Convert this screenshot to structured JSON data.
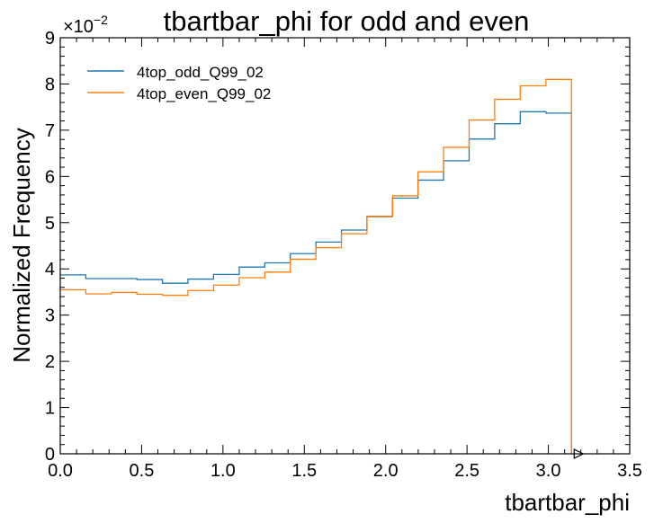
{
  "chart_data": {
    "type": "line",
    "drawstyle": "steps",
    "title": "tbartbar_phi for odd and even",
    "xlabel": "tbartbar_phi",
    "ylabel": "Normalized Frequency",
    "y_scale_label": "×10",
    "y_scale_exponent": "−2",
    "xlim": [
      0.0,
      3.5
    ],
    "ylim": [
      0,
      9
    ],
    "x_ticks": [
      "0.0",
      "0.5",
      "1.0",
      "1.5",
      "2.0",
      "2.5",
      "3.0",
      "3.5"
    ],
    "x_tick_values": [
      0.0,
      0.5,
      1.0,
      1.5,
      2.0,
      2.5,
      3.0,
      3.5
    ],
    "y_ticks": [
      "0",
      "1",
      "2",
      "3",
      "4",
      "5",
      "6",
      "7",
      "8",
      "9"
    ],
    "y_tick_values": [
      0,
      1,
      2,
      3,
      4,
      5,
      6,
      7,
      8,
      9
    ],
    "grid": false,
    "legend_position": "top-left",
    "bin_edges": [
      0.0,
      0.157,
      0.314,
      0.471,
      0.628,
      0.785,
      0.942,
      1.1,
      1.257,
      1.414,
      1.571,
      1.728,
      1.885,
      2.042,
      2.199,
      2.356,
      2.513,
      2.67,
      2.827,
      2.985,
      3.142
    ],
    "series": [
      {
        "name": "4top_odd_Q99_02",
        "color": "#1f77b4",
        "values": [
          3.87,
          3.79,
          3.79,
          3.77,
          3.69,
          3.78,
          3.88,
          4.04,
          4.13,
          4.33,
          4.58,
          4.84,
          5.13,
          5.53,
          5.92,
          6.34,
          6.81,
          7.14,
          7.4,
          7.37
        ]
      },
      {
        "name": "4top_even_Q99_02",
        "color": "#ff7f0e",
        "values": [
          3.55,
          3.46,
          3.49,
          3.45,
          3.43,
          3.53,
          3.65,
          3.81,
          3.93,
          4.21,
          4.46,
          4.76,
          5.14,
          5.58,
          6.1,
          6.63,
          7.22,
          7.67,
          7.96,
          8.1
        ]
      }
    ]
  }
}
